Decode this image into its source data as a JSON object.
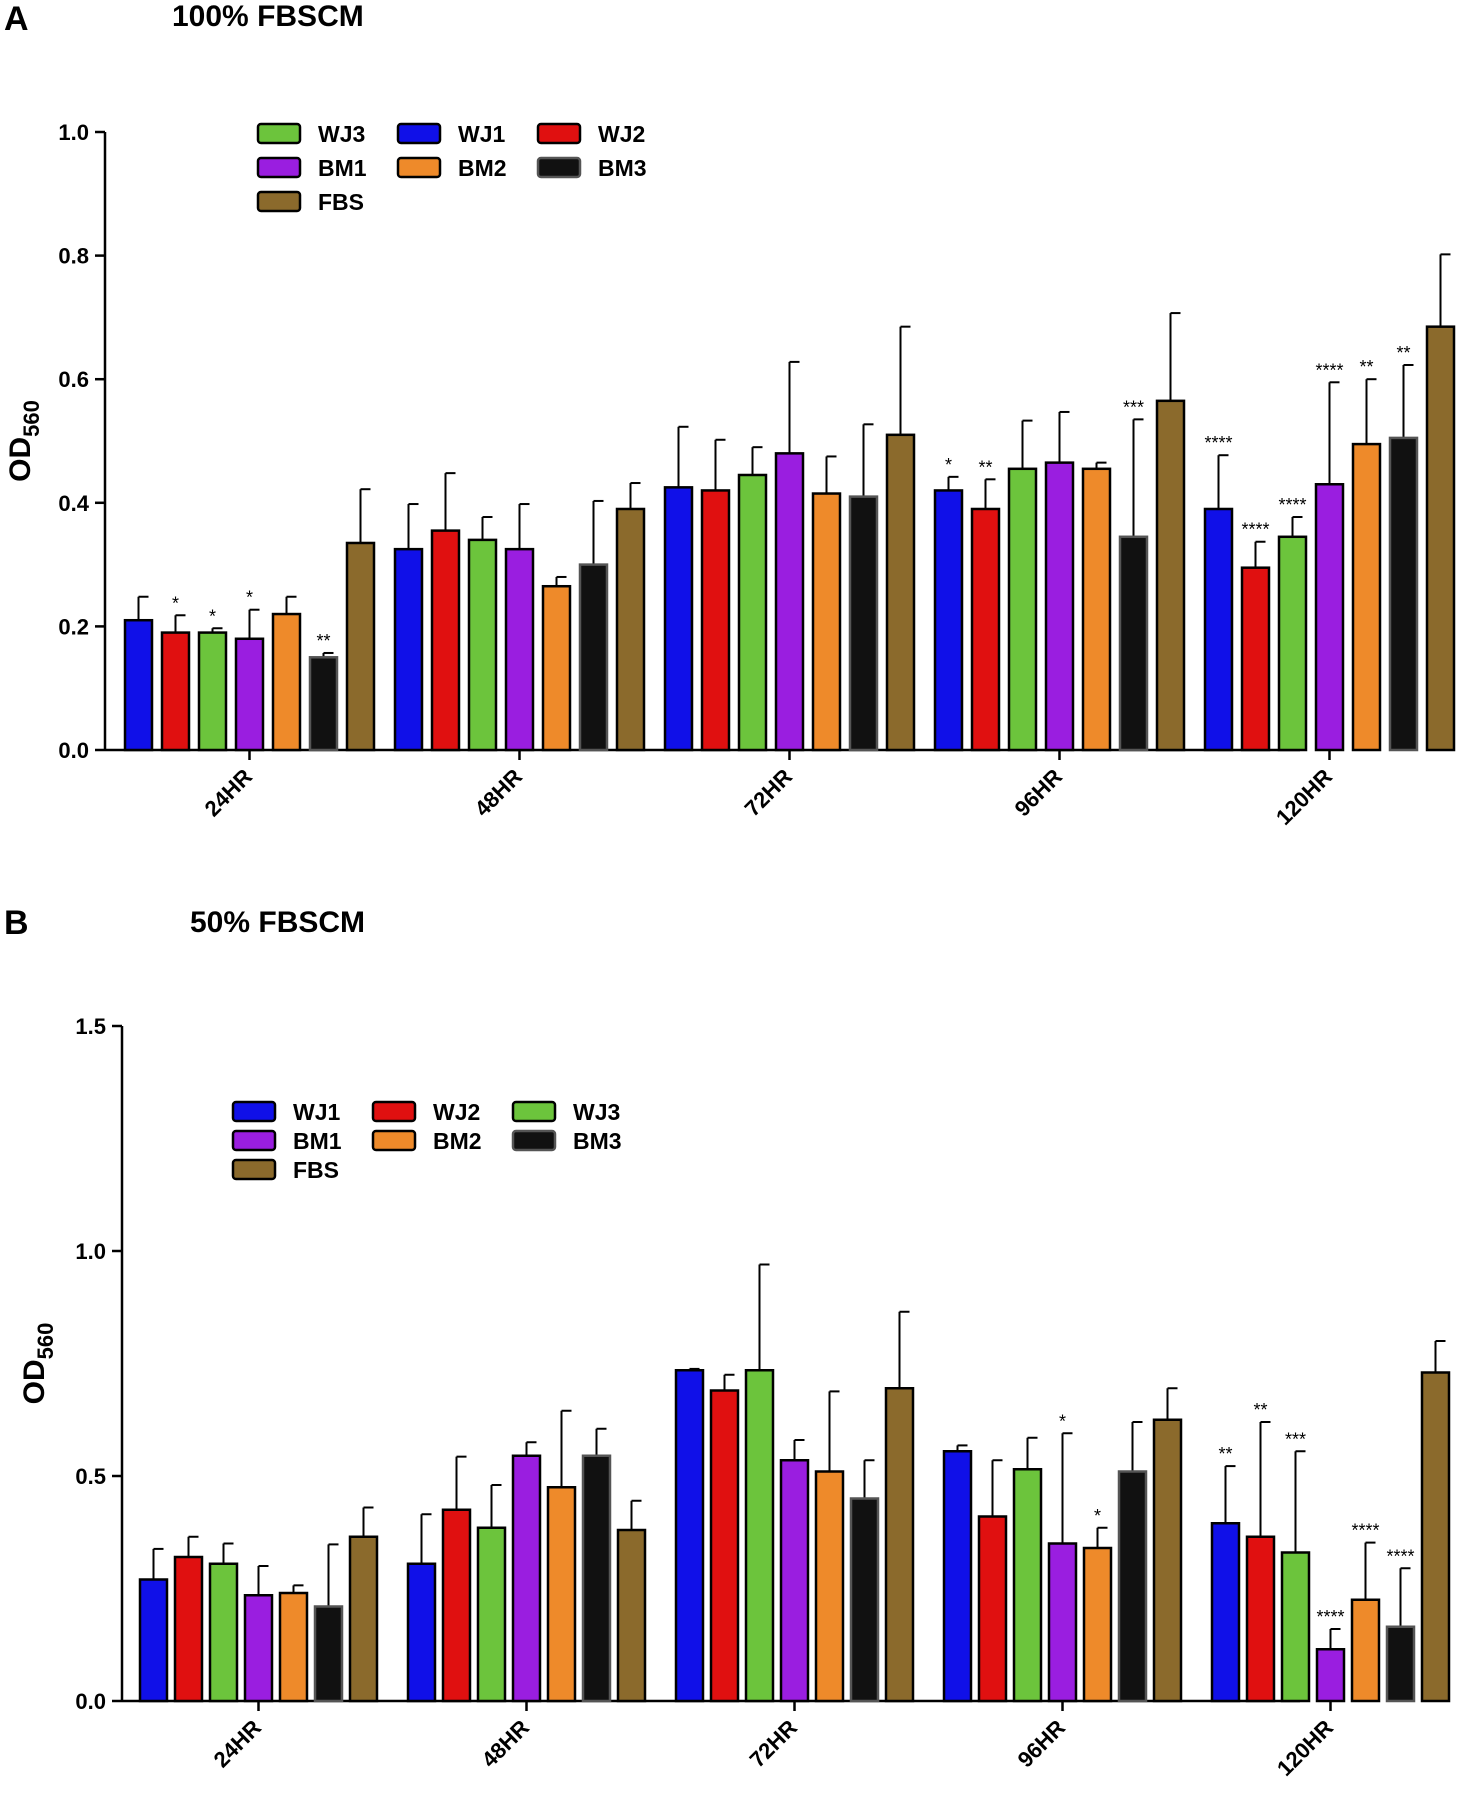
{
  "chart_data": [
    {
      "type": "bar",
      "panel": "A",
      "title": "100% FBSCM",
      "xlabel": "",
      "ylabel": "OD",
      "ylabel_sub": "560",
      "ylim": [
        0,
        1.0
      ],
      "yticks": [
        "0.0",
        "0.2",
        "0.4",
        "0.6",
        "0.8",
        "1.0"
      ],
      "categories": [
        "24HR",
        "48HR",
        "72HR",
        "96HR",
        "120HR"
      ],
      "legend": {
        "rows": [
          [
            "WJ3",
            "WJ1",
            "WJ2"
          ],
          [
            "BM1",
            "BM2",
            "BM3"
          ],
          [
            "FBS"
          ]
        ]
      },
      "series": [
        {
          "name": "WJ1",
          "color": "#1010e8",
          "values": [
            0.21,
            0.325,
            0.425,
            0.42,
            0.39
          ],
          "errors": [
            0.038,
            0.073,
            0.098,
            0.022,
            0.087
          ],
          "sig": [
            "",
            "",
            "",
            "*",
            "****"
          ]
        },
        {
          "name": "WJ2",
          "color": "#e01010",
          "values": [
            0.19,
            0.355,
            0.42,
            0.39,
            0.295
          ],
          "errors": [
            0.028,
            0.093,
            0.082,
            0.048,
            0.042
          ],
          "sig": [
            "*",
            "",
            "",
            "**",
            "****"
          ]
        },
        {
          "name": "WJ3",
          "color": "#6cc43c",
          "values": [
            0.19,
            0.34,
            0.445,
            0.455,
            0.345
          ],
          "errors": [
            0.007,
            0.037,
            0.045,
            0.078,
            0.032
          ],
          "sig": [
            "*",
            "",
            "",
            "",
            "****"
          ]
        },
        {
          "name": "BM1",
          "color": "#9a1ee0",
          "values": [
            0.18,
            0.325,
            0.48,
            0.465,
            0.43
          ],
          "errors": [
            0.047,
            0.073,
            0.148,
            0.082,
            0.165
          ],
          "sig": [
            "*",
            "",
            "",
            "",
            "****"
          ]
        },
        {
          "name": "BM2",
          "color": "#ee8a2a",
          "values": [
            0.22,
            0.265,
            0.415,
            0.455,
            0.495
          ],
          "errors": [
            0.028,
            0.015,
            0.06,
            0.01,
            0.105
          ],
          "sig": [
            "",
            "",
            "",
            "",
            "**"
          ]
        },
        {
          "name": "BM3",
          "color": "#111111",
          "values": [
            0.15,
            0.3,
            0.41,
            0.345,
            0.505
          ],
          "errors": [
            0.007,
            0.103,
            0.117,
            0.19,
            0.118
          ],
          "sig": [
            "**",
            "",
            "",
            "***",
            "**"
          ]
        },
        {
          "name": "FBS",
          "color": "#8b6a2c",
          "values": [
            0.335,
            0.39,
            0.51,
            0.565,
            0.685
          ],
          "errors": [
            0.087,
            0.042,
            0.175,
            0.142,
            0.117
          ],
          "sig": [
            "",
            "",
            "",
            "",
            ""
          ]
        }
      ]
    },
    {
      "type": "bar",
      "panel": "B",
      "title": "50% FBSCM",
      "xlabel": "",
      "ylabel": "OD",
      "ylabel_sub": "560",
      "ylim": [
        0,
        1.5
      ],
      "yticks": [
        "0.0",
        "0.5",
        "1.0",
        "1.5"
      ],
      "categories": [
        "24HR",
        "48HR",
        "72HR",
        "96HR",
        "120HR"
      ],
      "legend": {
        "rows": [
          [
            "WJ1",
            "WJ2",
            "WJ3"
          ],
          [
            "BM1",
            "BM2",
            "BM3"
          ],
          [
            "FBS"
          ]
        ]
      },
      "series": [
        {
          "name": "WJ1",
          "color": "#1010e8",
          "values": [
            0.27,
            0.305,
            0.735,
            0.555,
            0.395
          ],
          "errors": [
            0.068,
            0.11,
            0.003,
            0.013,
            0.127
          ],
          "sig": [
            "",
            "",
            "",
            "",
            "**"
          ]
        },
        {
          "name": "WJ2",
          "color": "#e01010",
          "values": [
            0.32,
            0.425,
            0.69,
            0.41,
            0.365
          ],
          "errors": [
            0.045,
            0.118,
            0.035,
            0.125,
            0.255
          ],
          "sig": [
            "",
            "",
            "",
            "",
            "**"
          ]
        },
        {
          "name": "WJ3",
          "color": "#6cc43c",
          "values": [
            0.305,
            0.385,
            0.735,
            0.515,
            0.33
          ],
          "errors": [
            0.045,
            0.095,
            0.235,
            0.07,
            0.225
          ],
          "sig": [
            "",
            "",
            "",
            "",
            "***"
          ]
        },
        {
          "name": "BM1",
          "color": "#9a1ee0",
          "values": [
            0.235,
            0.545,
            0.535,
            0.35,
            0.115
          ],
          "errors": [
            0.065,
            0.03,
            0.045,
            0.245,
            0.045
          ],
          "sig": [
            "",
            "",
            "",
            "*",
            "****"
          ]
        },
        {
          "name": "BM2",
          "color": "#ee8a2a",
          "values": [
            0.24,
            0.475,
            0.51,
            0.34,
            0.225
          ],
          "errors": [
            0.017,
            0.17,
            0.178,
            0.045,
            0.127
          ],
          "sig": [
            "",
            "",
            "",
            "*",
            "****"
          ]
        },
        {
          "name": "BM3",
          "color": "#111111",
          "values": [
            0.21,
            0.545,
            0.45,
            0.51,
            0.165
          ],
          "errors": [
            0.138,
            0.06,
            0.085,
            0.11,
            0.13
          ],
          "sig": [
            "",
            "",
            "",
            "",
            "****"
          ]
        },
        {
          "name": "FBS",
          "color": "#8b6a2c",
          "values": [
            0.365,
            0.38,
            0.695,
            0.625,
            0.73
          ],
          "errors": [
            0.065,
            0.065,
            0.17,
            0.07,
            0.07
          ],
          "sig": [
            "",
            "",
            "",
            "",
            ""
          ]
        }
      ]
    }
  ]
}
